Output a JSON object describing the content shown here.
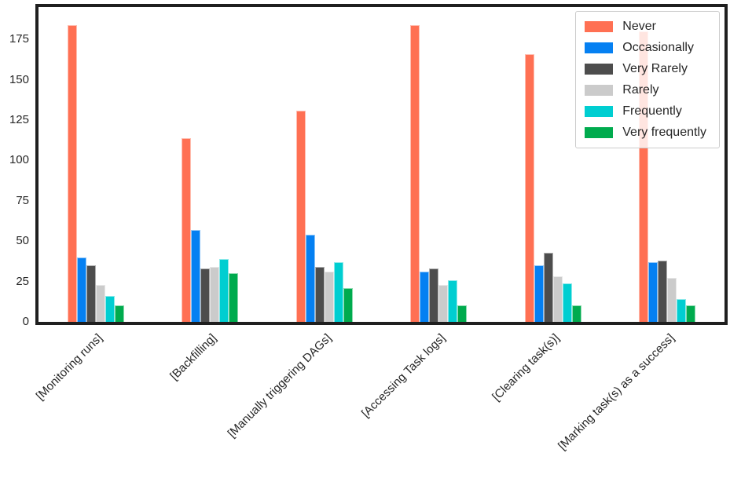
{
  "figure": {
    "background": "#ffffff",
    "spine_color": "#1f1f1f",
    "text_color": "#262626"
  },
  "chart_data": {
    "type": "bar",
    "title": "",
    "xlabel": "",
    "ylabel": "",
    "categories": [
      "[Monitoring runs]",
      "[Backfilling]",
      "[Manually triggering DAGs]",
      "[Accessing Task logs]",
      "[Clearing task(s)]",
      "[Marking task(s) as a success]"
    ],
    "series": [
      {
        "name": "Never",
        "color": "#FF7053",
        "values": [
          184,
          114,
          131,
          184,
          166,
          180
        ]
      },
      {
        "name": "Occasionally",
        "color": "#0580F2",
        "values": [
          40,
          57,
          54,
          31,
          35,
          37
        ]
      },
      {
        "name": "Very Rarely",
        "color": "#4D4D4D",
        "values": [
          35,
          33,
          34,
          33,
          43,
          38
        ]
      },
      {
        "name": "Rarely",
        "color": "#CBCBCB",
        "values": [
          23,
          34,
          31,
          23,
          28,
          27
        ]
      },
      {
        "name": "Frequently",
        "color": "#00CED1",
        "values": [
          16,
          39,
          37,
          26,
          24,
          14
        ]
      },
      {
        "name": "Very frequently",
        "color": "#00AB4E",
        "values": [
          10,
          30,
          21,
          10,
          10,
          10
        ]
      }
    ],
    "yticks": [
      0,
      25,
      50,
      75,
      100,
      125,
      150,
      175
    ],
    "ylim": [
      0,
      195
    ],
    "grid": false,
    "legend_position": "upper right",
    "bar_edge_visible": true
  }
}
